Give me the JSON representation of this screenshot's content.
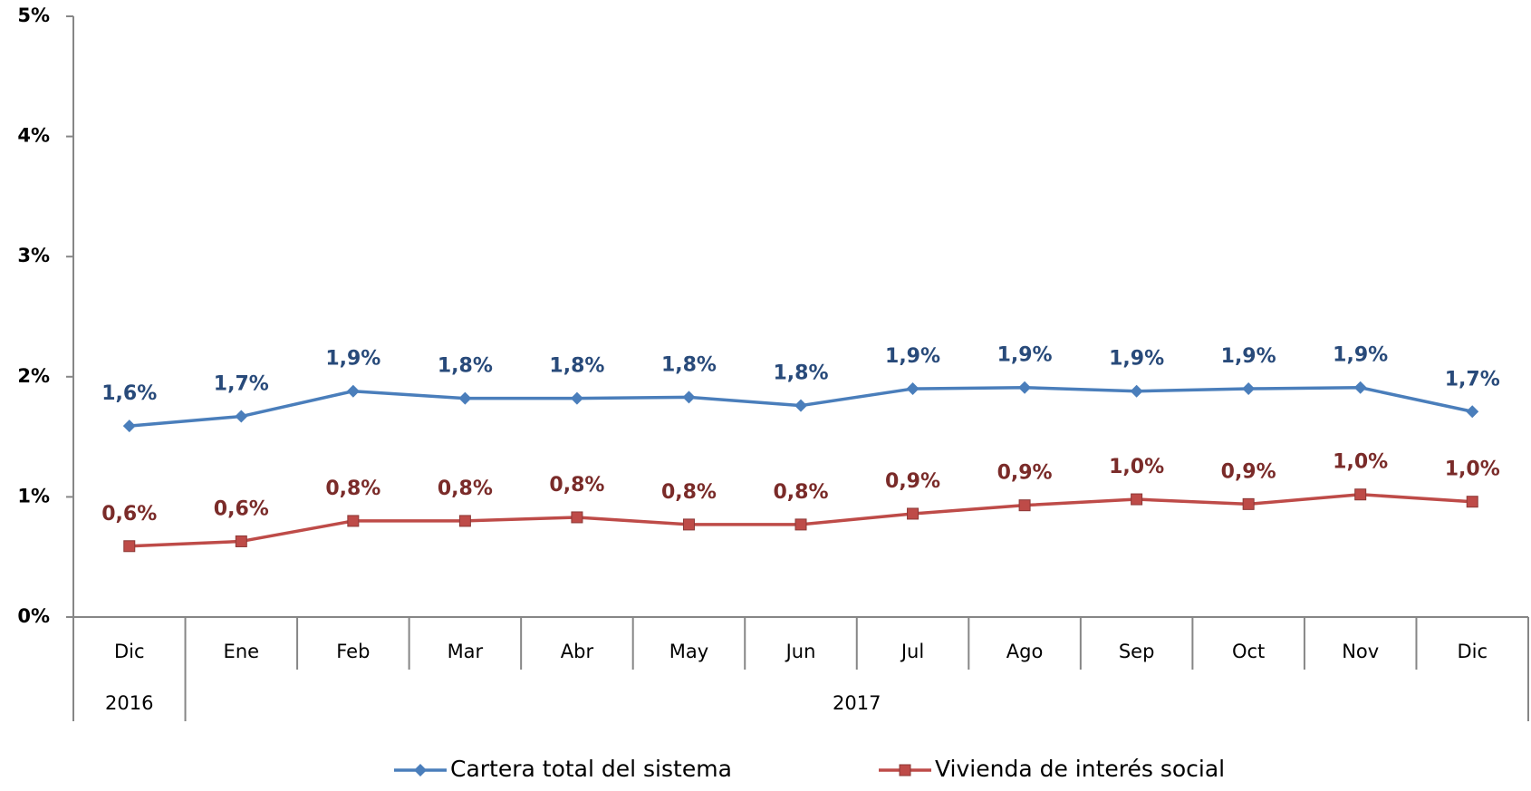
{
  "chart_data": {
    "type": "line",
    "categories": [
      "Dic",
      "Ene",
      "Feb",
      "Mar",
      "Abr",
      "May",
      "Jun",
      "Jul",
      "Ago",
      "Sep",
      "Oct",
      "Nov",
      "Dic"
    ],
    "x_groups": [
      {
        "label": "2016",
        "span": 1
      },
      {
        "label": "2017",
        "span": 12
      }
    ],
    "series": [
      {
        "name": "Cartera total del sistema",
        "color": "#4a7ebb",
        "marker": "diamond",
        "label_color": "#284a7a",
        "values": [
          1.59,
          1.67,
          1.88,
          1.82,
          1.82,
          1.83,
          1.76,
          1.9,
          1.91,
          1.88,
          1.9,
          1.91,
          1.71
        ],
        "value_labels": [
          "1,6%",
          "1,7%",
          "1,9%",
          "1,8%",
          "1,8%",
          "1,8%",
          "1,8%",
          "1,9%",
          "1,9%",
          "1,9%",
          "1,9%",
          "1,9%",
          "1,7%"
        ]
      },
      {
        "name": "Vivienda de interés social",
        "color": "#be4b48",
        "marker": "square",
        "label_color": "#7a2b29",
        "values": [
          0.59,
          0.63,
          0.8,
          0.8,
          0.83,
          0.77,
          0.77,
          0.86,
          0.93,
          0.98,
          0.94,
          1.02,
          0.96
        ],
        "value_labels": [
          "0,6%",
          "0,6%",
          "0,8%",
          "0,8%",
          "0,8%",
          "0,8%",
          "0,8%",
          "0,9%",
          "0,9%",
          "1,0%",
          "0,9%",
          "1,0%",
          "1,0%"
        ]
      }
    ],
    "ylim": [
      0,
      5
    ],
    "yticks": [
      {
        "value": 0,
        "label": "0%"
      },
      {
        "value": 1,
        "label": "1%"
      },
      {
        "value": 2,
        "label": "2%"
      },
      {
        "value": 3,
        "label": "3%"
      },
      {
        "value": 4,
        "label": "4%"
      },
      {
        "value": 5,
        "label": "5%"
      }
    ],
    "grid": false,
    "legend": "bottom"
  }
}
